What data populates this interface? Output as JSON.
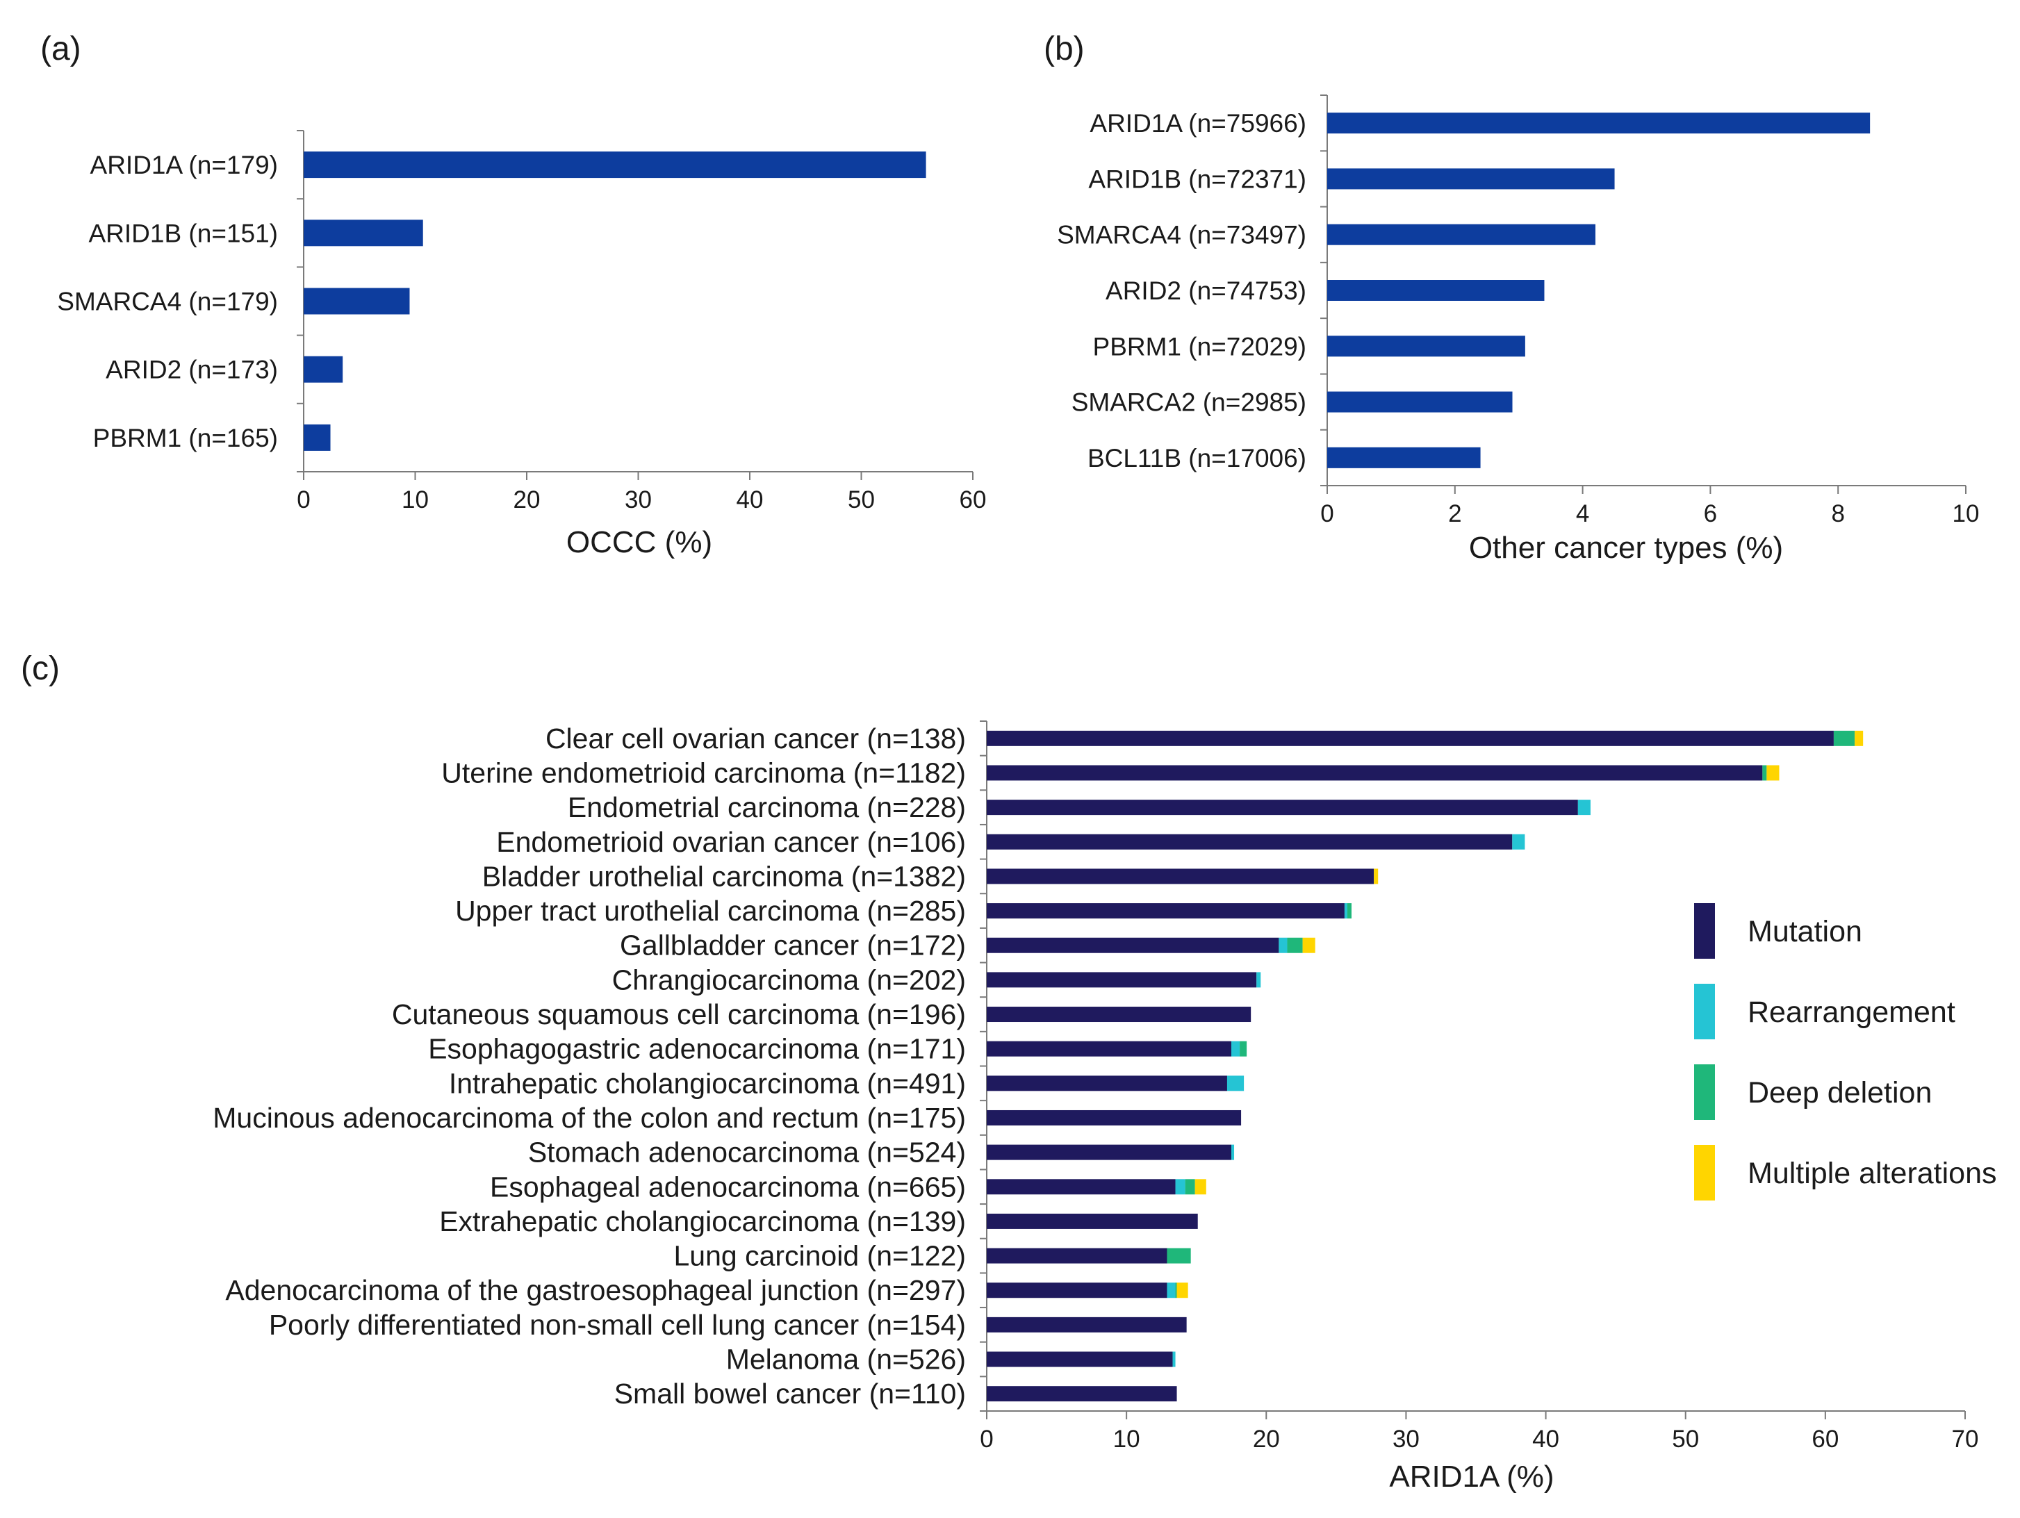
{
  "colors": {
    "bar": "#0d3d9e",
    "mutation": "#1f1a5e",
    "rearrangement": "#25c4d4",
    "deep_deletion": "#1fb77a",
    "multiple_alterations": "#ffd500"
  },
  "chart_data": [
    {
      "id": "a",
      "panel_label": "(a)",
      "type": "bar",
      "orientation": "horizontal",
      "categories": [
        "ARID1A (n=179)",
        "ARID1B (n=151)",
        "SMARCA4 (n=179)",
        "ARID2 (n=173)",
        "PBRM1 (n=165)"
      ],
      "values": [
        55.8,
        10.7,
        9.5,
        3.5,
        2.4
      ],
      "xlabel": "OCCC (%)",
      "xlim": [
        0,
        60
      ],
      "xticks": [
        "0",
        "10",
        "20",
        "30",
        "40",
        "50",
        "60"
      ]
    },
    {
      "id": "b",
      "panel_label": "(b)",
      "type": "bar",
      "orientation": "horizontal",
      "categories": [
        "ARID1A (n=75966)",
        "ARID1B (n=72371)",
        "SMARCA4 (n=73497)",
        "ARID2 (n=74753)",
        "PBRM1 (n=72029)",
        "SMARCA2 (n=2985)",
        "BCL11B (n=17006)"
      ],
      "values": [
        8.5,
        4.5,
        4.2,
        3.4,
        3.1,
        2.9,
        2.4
      ],
      "xlabel": "Other cancer types  (%)",
      "xlim": [
        0,
        10
      ],
      "xticks": [
        "0",
        "2",
        "4",
        "6",
        "8",
        "10"
      ]
    },
    {
      "id": "c",
      "panel_label": "(c)",
      "type": "bar",
      "orientation": "horizontal",
      "stacked": true,
      "categories": [
        "Clear cell ovarian cancer (n=138)",
        "Uterine endometrioid carcinoma (n=1182)",
        "Endometrial carcinoma (n=228)",
        "Endometrioid ovarian cancer (n=106)",
        "Bladder urothelial carcinoma (n=1382)",
        "Upper tract urothelial carcinoma (n=285)",
        "Gallbladder cancer (n=172)",
        "Chrangiocarcinoma (n=202)",
        "Cutaneous squamous cell carcinoma (n=196)",
        "Esophagogastric adenocarcinoma (n=171)",
        "Intrahepatic cholangiocarcinoma (n=491)",
        "Mucinous adenocarcinoma of the colon and rectum (n=175)",
        "Stomach adenocarcinoma (n=524)",
        "Esophageal adenocarcinoma (n=665)",
        "Extrahepatic cholangiocarcinoma (n=139)",
        "Lung carcinoid (n=122)",
        "Adenocarcinoma of the gastroesophageal junction (n=297)",
        "Poorly differentiated non-small cell lung cancer (n=154)",
        "Melanoma (n=526)",
        "Small bowel cancer (n=110)"
      ],
      "series": [
        {
          "name": "Mutation",
          "values": [
            60.6,
            55.5,
            42.3,
            37.6,
            27.7,
            25.6,
            20.9,
            19.3,
            18.9,
            17.5,
            17.2,
            18.2,
            17.5,
            13.5,
            15.1,
            12.9,
            12.9,
            14.3,
            13.3,
            13.6
          ]
        },
        {
          "name": "Rearrangement",
          "values": [
            0,
            0,
            0.9,
            0.9,
            0,
            0.2,
            0.6,
            0.3,
            0,
            0.6,
            1.2,
            0,
            0.2,
            0.7,
            0,
            0,
            0.6,
            0,
            0.2,
            0
          ]
        },
        {
          "name": "Deep deletion",
          "values": [
            1.5,
            0.3,
            0,
            0,
            0,
            0.3,
            1.1,
            0,
            0,
            0.5,
            0,
            0,
            0,
            0.7,
            0,
            1.7,
            0.1,
            0,
            0,
            0
          ]
        },
        {
          "name": "Multiple alterations",
          "values": [
            0.6,
            0.9,
            0,
            0,
            0.3,
            0,
            0.9,
            0,
            0,
            0,
            0,
            0,
            0,
            0.8,
            0,
            0,
            0.8,
            0,
            0,
            0
          ]
        }
      ],
      "xlabel": "ARID1A (%)",
      "xlim": [
        0,
        70
      ],
      "xticks": [
        "0",
        "10",
        "20",
        "30",
        "40",
        "50",
        "60",
        "70"
      ],
      "legend_position": "right"
    }
  ]
}
